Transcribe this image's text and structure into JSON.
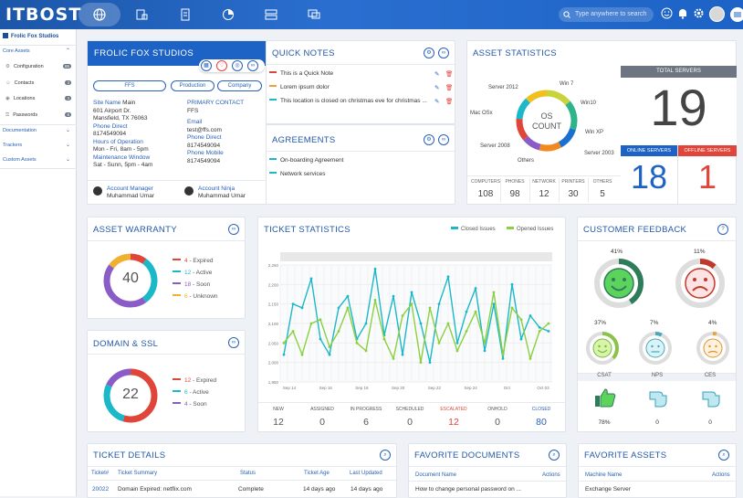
{
  "app": {
    "logo": "ITBOST",
    "search_placeholder": "Type anywhere to search"
  },
  "sidebar": {
    "org": "Frolic Fox Studios",
    "core_assets": "Core Assets",
    "items": [
      {
        "label": "Configuration",
        "count": "65"
      },
      {
        "label": "Contacts",
        "count": "3"
      },
      {
        "label": "Locations",
        "count": "3"
      },
      {
        "label": "Passwords",
        "count": "8"
      }
    ],
    "documentation": "Documentation",
    "trackers": "Trackers",
    "custom_assets": "Custom Assets"
  },
  "company": {
    "name": "FROLIC FOX STUDIOS",
    "tags": [
      "FFS",
      "Production",
      "Company"
    ],
    "site_name_label": "Site Name",
    "site_name": "Main",
    "address1": "601 Airport Dr.",
    "address2": "Mansfield, TX 76063",
    "phone_label": "Phone Direct",
    "phone": "8174549094",
    "hours_label": "Hours of Operation",
    "hours": "Mon - Fri, 8am - 5pm",
    "maint_label": "Maintenance Window",
    "maint": "Sat - Sunn, 5pm - 4am",
    "primary_label": "PRIMARY CONTACT",
    "primary": "FFS",
    "email_label": "Email",
    "email": "test@ffs.com",
    "pdirect_label": "Phone Direct",
    "pdirect": "8174549094",
    "mobile_label": "Phone Mobile",
    "mobile": "8174549094",
    "am_label": "Account Manager",
    "am": "Muhammad Umar",
    "an_label": "Account Ninja",
    "an": "Muhammad Umar"
  },
  "notes": {
    "title": "QUICK NOTES",
    "items": [
      "This is a Quick Note",
      "Lorem ipsum dolor",
      "This location is closed on christmas eve for christmas ..."
    ],
    "colors": [
      "#e0453a",
      "#f0a23a",
      "#1ab8c8"
    ]
  },
  "agreements": {
    "title": "AGREEMENTS",
    "items": [
      "On-boarding Agreement",
      "Network services"
    ]
  },
  "assets": {
    "title": "ASSET STATISTICS",
    "center1": "OS",
    "center2": "COUNT",
    "labels": [
      "Win 7",
      "Win10",
      "Win XP",
      "Server 2003",
      "Others",
      "Server 2008",
      "Mac OSx",
      "Server 2012"
    ],
    "bottom": [
      {
        "label": "COMPUTERS",
        "value": "108"
      },
      {
        "label": "PHONES",
        "value": "98"
      },
      {
        "label": "NETWORK",
        "value": "12"
      },
      {
        "label": "PRINTERS",
        "value": "30"
      },
      {
        "label": "OTHERS",
        "value": "5"
      }
    ],
    "total_label": "TOTAL SERVERS",
    "total": "19",
    "online_label": "ONLINE SERVERS",
    "online": "18",
    "offline_label": "OFFLINE SERVERS",
    "offline": "1"
  },
  "warranty": {
    "title": "ASSET WARRANTY",
    "center": "40",
    "legend": [
      {
        "n": "4",
        "l": "- Expired",
        "c": "#e0453a"
      },
      {
        "n": "12",
        "l": "- Active",
        "c": "#1ab8c8"
      },
      {
        "n": "18",
        "l": "- Soon",
        "c": "#8a5cc8"
      },
      {
        "n": "6",
        "l": "- Unknown",
        "c": "#f0b030"
      }
    ]
  },
  "domain": {
    "title": "DOMAIN & SSL",
    "center": "22",
    "legend": [
      {
        "n": "12",
        "l": "- Expired",
        "c": "#e0453a"
      },
      {
        "n": "6",
        "l": "- Active",
        "c": "#1ab8c8"
      },
      {
        "n": "4",
        "l": "- Soon",
        "c": "#8a5cc8"
      }
    ]
  },
  "tickets": {
    "title": "TICKET STATISTICS",
    "legend_closed": "Closed Issues",
    "legend_opened": "Opened Issues",
    "counts": [
      {
        "label": "NEW",
        "value": "12"
      },
      {
        "label": "ASSIGNED",
        "value": "0"
      },
      {
        "label": "IN PROGRESS",
        "value": "6"
      },
      {
        "label": "SCHEDULED",
        "value": "0"
      },
      {
        "label": "ESCALATED",
        "value": "12"
      },
      {
        "label": "ONHOLD",
        "value": "0"
      },
      {
        "label": "CLOSED",
        "value": "80"
      }
    ]
  },
  "chart_data": {
    "type": "line",
    "yticks": [
      "2,250",
      "2,200",
      "2,150",
      "2,100",
      "2,050",
      "2,000",
      "1,950"
    ],
    "xticks": [
      "Sep 14",
      "Sep 16",
      "Sep 18",
      "Sep 20",
      "Sep 22",
      "Sep 24",
      "Oct",
      "Oct 03"
    ],
    "ylim": [
      1950,
      2250
    ],
    "series": [
      {
        "name": "Closed Issues",
        "color": "#1ab8c8",
        "values": [
          2020,
          2150,
          2140,
          2215,
          2060,
          2020,
          2140,
          2170,
          2060,
          2100,
          2240,
          2070,
          2170,
          2020,
          2180,
          2100,
          2000,
          2150,
          2220,
          2050,
          2130,
          2190,
          2030,
          2150,
          2010,
          2200,
          2060,
          2120,
          2090,
          2080
        ]
      },
      {
        "name": "Opened Issues",
        "color": "#8bd040",
        "values": [
          2050,
          2080,
          2020,
          2100,
          2110,
          2040,
          2080,
          2140,
          2050,
          2030,
          2160,
          2060,
          2010,
          2120,
          2150,
          2000,
          2140,
          2050,
          2100,
          2030,
          2080,
          2130,
          2050,
          2180,
          2020,
          2140,
          2110,
          2010,
          2080,
          2100
        ]
      }
    ]
  },
  "feedback": {
    "title": "CUSTOMER FEEDBACK",
    "happy": "41%",
    "sad": "11%",
    "s1": "37%",
    "s2": "7%",
    "s3": "4%",
    "csat": "CSAT",
    "nps": "NPS",
    "ces": "CES",
    "csat_v": "78%",
    "nps_v": "0",
    "ces_v": "0"
  },
  "ticket_details": {
    "title": "TICKET DETAILS",
    "cols": [
      "Ticket#",
      "Ticket Summary",
      "Status",
      "Ticket Age",
      "Last Updated"
    ],
    "row": [
      "20022",
      "Domain Expired: netflix.com",
      "Complete",
      "14 days ago",
      "14 days ago"
    ]
  },
  "fav_docs": {
    "title": "FAVORITE DOCUMENTS",
    "cols": [
      "Document Name",
      "Actions"
    ],
    "row": "How to change personal password on ..."
  },
  "fav_assets": {
    "title": "FAVORITE ASSETS",
    "cols": [
      "Machine Name",
      "Actions"
    ],
    "row": "Exchange Server"
  }
}
